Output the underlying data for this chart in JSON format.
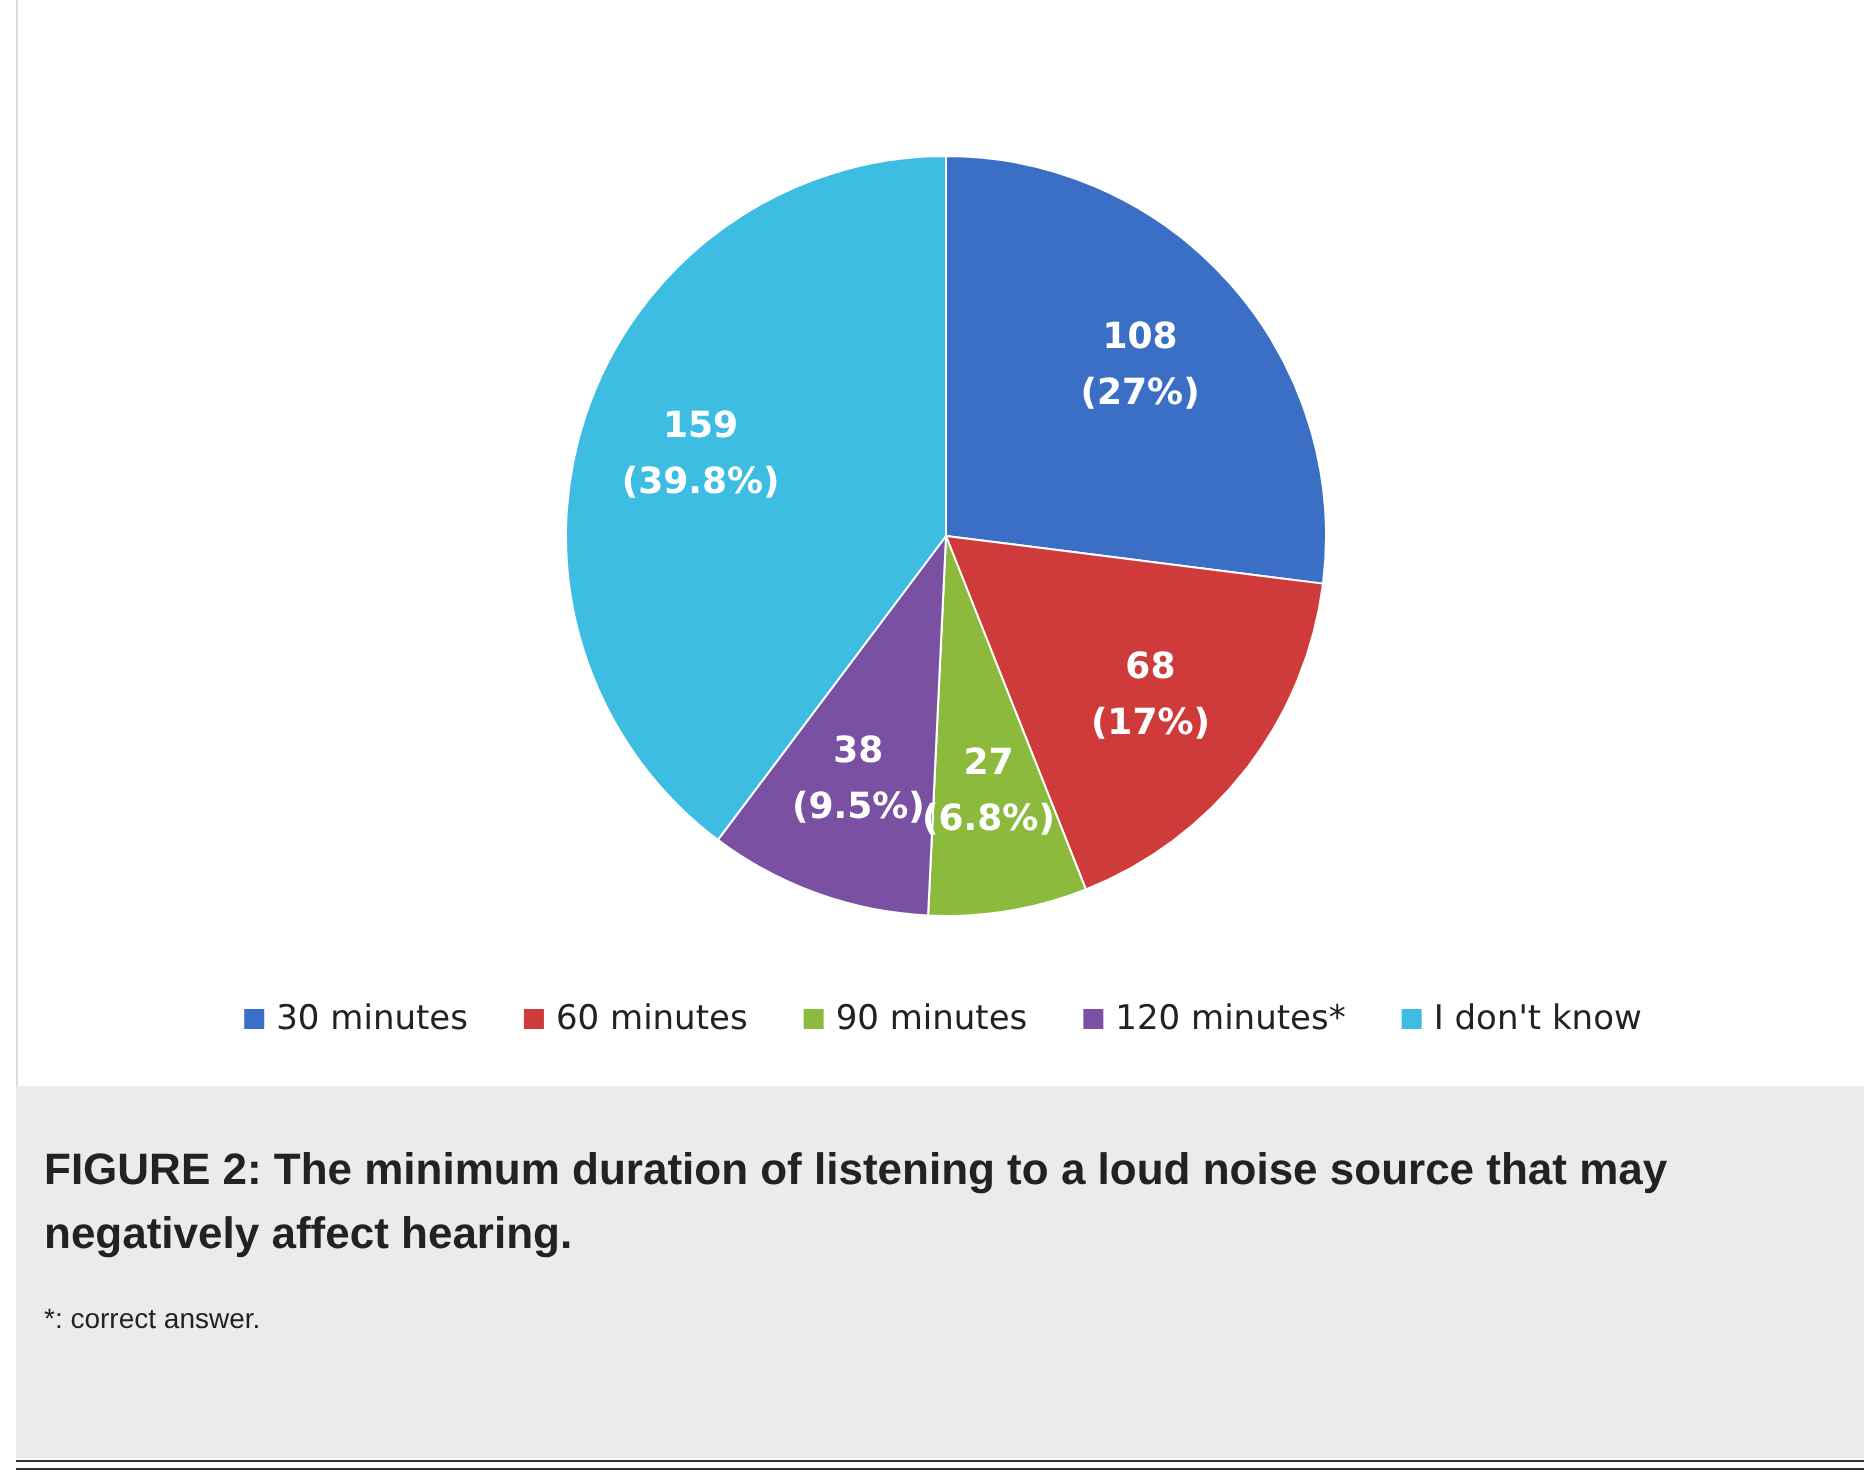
{
  "chart_data": {
    "type": "pie",
    "title": "FIGURE 2: The minimum duration of listening to a loud noise source that may negatively affect hearing.",
    "annotations": [
      "*: correct answer."
    ],
    "categories": [
      "30 minutes",
      "60 minutes",
      "90 minutes",
      "120 minutes*",
      "I don't know"
    ],
    "values": [
      108,
      68,
      27,
      38,
      159
    ],
    "value_labels": [
      "108\n(27%)",
      "68\n(17%)",
      "27\n(6.8%)",
      "38\n(9.5%)",
      "159\n(39.8%)"
    ],
    "colors": [
      "#3b6fc5",
      "#cf3a3a",
      "#8cba3c",
      "#7a50a2",
      "#3cbde1"
    ],
    "legend": "bottom"
  }
}
